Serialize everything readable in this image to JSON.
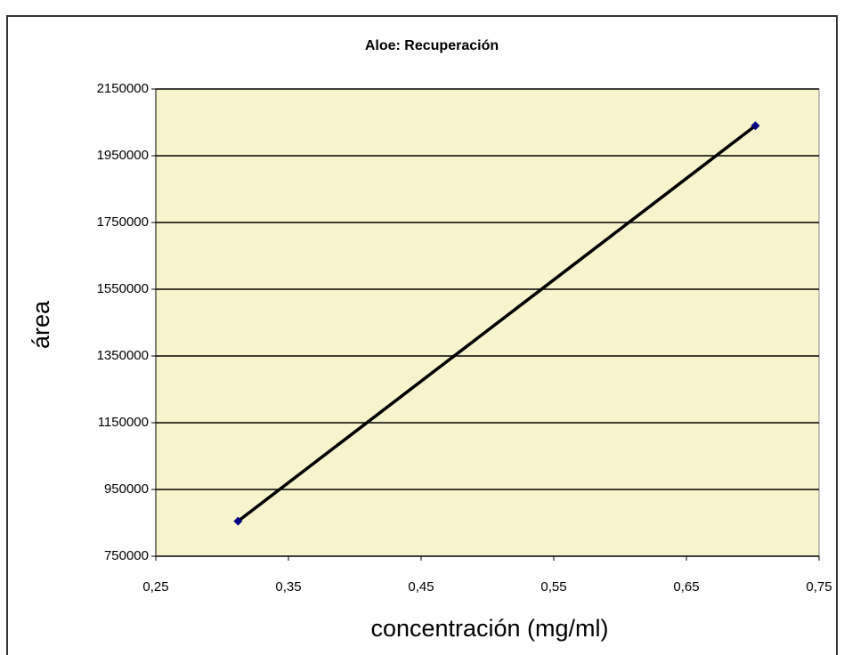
{
  "chart_data": {
    "type": "scatter",
    "title": "Aloe: Recuperación",
    "x_label": "concentración (mg/ml)",
    "y_label": "área",
    "x": [
      0.312,
      0.702
    ],
    "values": [
      855000,
      2040000
    ],
    "color": "#000080",
    "line_color": "#000000",
    "plot_background": "#f7f3cc",
    "grid": true,
    "xlim": [
      0.25,
      0.75
    ],
    "xticks": [
      {
        "value": 0.25,
        "label": "0,25"
      },
      {
        "value": 0.35,
        "label": "0,35"
      },
      {
        "value": 0.45,
        "label": "0,45"
      },
      {
        "value": 0.55,
        "label": "0,55"
      },
      {
        "value": 0.65,
        "label": "0,65"
      },
      {
        "value": 0.75,
        "label": "0,75"
      }
    ],
    "ylim": [
      750000,
      2150000
    ],
    "yticks": [
      750000,
      950000,
      1150000,
      1350000,
      1550000,
      1750000,
      1950000,
      2150000
    ]
  }
}
